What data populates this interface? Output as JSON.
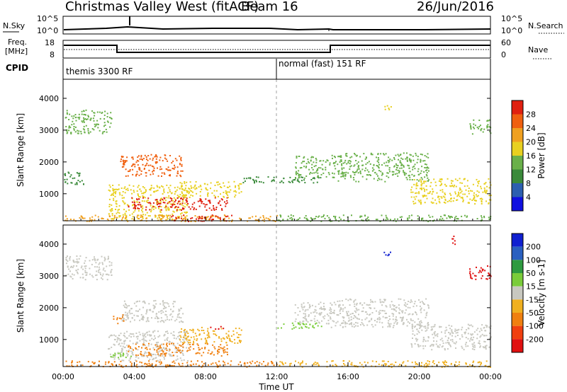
{
  "header": {
    "station": "Christmas Valley West (fitACF)",
    "beam": "Beam 16",
    "date": "26/Jun/2016"
  },
  "strip_labels": {
    "nsky": "N.Sky",
    "nsearch": "N.Search",
    "freq": "Freq.",
    "freq_unit": "[MHz]",
    "nave": "Nave",
    "cpid": "CPID",
    "nsky_top": "10^5",
    "nsky_bot": "10^0",
    "freq_top": "18",
    "freq_bot": "8",
    "nave_top": "60",
    "nave_bot": "0"
  },
  "cpid_segments": [
    {
      "label": "themis 3300 RF",
      "start_hour": 0,
      "end_hour": 12
    },
    {
      "label": "normal (fast) 151 RF",
      "start_hour": 12,
      "end_hour": 24
    }
  ],
  "colors": {
    "power_scale": [
      "#1010e0",
      "#2c5fb0",
      "#3a8a3a",
      "#6ab04a",
      "#e8d020",
      "#f0a020",
      "#f06010",
      "#e02010"
    ],
    "velocity_scale": [
      "#1020d0",
      "#2a60c0",
      "#2e9a40",
      "#7acc3a",
      "#c8c8c0",
      "#f0b020",
      "#f08010",
      "#f04010",
      "#e01010"
    ],
    "ground_gray": "#c0c0b8"
  },
  "chart_data": [
    {
      "type": "heatmap",
      "name": "Power",
      "ylabel": "Slant Range [km]",
      "xlabel": "Time UT",
      "x_ticks": [
        "00:00",
        "04:00",
        "08:00",
        "12:00",
        "16:00",
        "20:00",
        "00:00"
      ],
      "xlim_hours": [
        0,
        24
      ],
      "ylim_km": [
        150,
        4600
      ],
      "y_ticks": [
        1000,
        2000,
        3000,
        4000
      ],
      "colorbar_label": "Power [dB]",
      "colorbar_ticks": [
        "4",
        "8",
        "12",
        "16",
        "20",
        "24",
        "28"
      ],
      "colorbar_range": [
        0,
        32
      ],
      "regions": [
        {
          "t0": 0.1,
          "t1": 2.7,
          "r0": 2900,
          "r1": 3650,
          "level": 12
        },
        {
          "t0": 3.2,
          "t1": 6.7,
          "r0": 1550,
          "r1": 2250,
          "level": 24
        },
        {
          "t0": 0.0,
          "t1": 1.2,
          "r0": 1300,
          "r1": 1700,
          "level": 10
        },
        {
          "t0": 2.5,
          "t1": 7.0,
          "r0": 200,
          "r1": 1300,
          "level": 16
        },
        {
          "t0": 3.6,
          "t1": 9.2,
          "r0": 500,
          "r1": 900,
          "level": 28
        },
        {
          "t0": 6.5,
          "t1": 10.0,
          "r0": 900,
          "r1": 1400,
          "level": 16
        },
        {
          "t0": 0.0,
          "t1": 12.0,
          "r0": 150,
          "r1": 350,
          "level": 20
        },
        {
          "t0": 6.0,
          "t1": 9.5,
          "r0": 150,
          "r1": 350,
          "level": 28
        },
        {
          "t0": 10.0,
          "t1": 12.0,
          "r0": 1350,
          "r1": 1550,
          "level": 8
        },
        {
          "t0": 12.0,
          "t1": 14.5,
          "r0": 1350,
          "r1": 1550,
          "level": 10
        },
        {
          "t0": 13.0,
          "t1": 15.0,
          "r0": 1500,
          "r1": 2200,
          "level": 12
        },
        {
          "t0": 15.0,
          "t1": 20.5,
          "r0": 1400,
          "r1": 2300,
          "level": 12
        },
        {
          "t0": 19.5,
          "t1": 24.0,
          "r0": 700,
          "r1": 1500,
          "level": 16
        },
        {
          "t0": 12.0,
          "t1": 24.0,
          "r0": 150,
          "r1": 350,
          "level": 12
        },
        {
          "t0": 18.0,
          "t1": 18.4,
          "r0": 3650,
          "r1": 3800,
          "level": 16
        },
        {
          "t0": 22.8,
          "t1": 24.0,
          "r0": 2900,
          "r1": 3350,
          "level": 12
        }
      ]
    },
    {
      "type": "heatmap",
      "name": "Velocity",
      "ylabel": "Slant Range [km]",
      "xlabel": "Time UT",
      "x_ticks": [
        "00:00",
        "04:00",
        "08:00",
        "12:00",
        "16:00",
        "20:00",
        "00:00"
      ],
      "xlim_hours": [
        0,
        24
      ],
      "ylim_km": [
        150,
        4600
      ],
      "y_ticks": [
        1000,
        2000,
        3000,
        4000
      ],
      "colorbar_label": "Velocity [m s-1]",
      "colorbar_ticks": [
        "200",
        "100",
        "50",
        "15",
        "-15",
        "-50",
        "-100",
        "-200"
      ],
      "colorbar_range": [
        -250,
        250
      ],
      "regions": [
        {
          "t0": 0.1,
          "t1": 2.7,
          "r0": 2900,
          "r1": 3650,
          "level": 0
        },
        {
          "t0": 3.2,
          "t1": 6.7,
          "r0": 1550,
          "r1": 2250,
          "level": 0
        },
        {
          "t0": 2.8,
          "t1": 3.4,
          "r0": 1500,
          "r1": 1800,
          "level": -60
        },
        {
          "t0": 2.5,
          "t1": 7.0,
          "r0": 350,
          "r1": 1300,
          "level": 0
        },
        {
          "t0": 3.6,
          "t1": 9.2,
          "r0": 500,
          "r1": 900,
          "level": -60
        },
        {
          "t0": 2.6,
          "t1": 3.8,
          "r0": 420,
          "r1": 620,
          "level": 30
        },
        {
          "t0": 8.0,
          "t1": 9.0,
          "r0": 1350,
          "r1": 1450,
          "level": -200
        },
        {
          "t0": 6.5,
          "t1": 10.0,
          "r0": 900,
          "r1": 1400,
          "level": -30
        },
        {
          "t0": 0.0,
          "t1": 12.0,
          "r0": 150,
          "r1": 350,
          "level": -50
        },
        {
          "t0": 12.0,
          "t1": 14.5,
          "r0": 1350,
          "r1": 1550,
          "level": 30
        },
        {
          "t0": 13.0,
          "t1": 15.0,
          "r0": 1500,
          "r1": 2200,
          "level": 0
        },
        {
          "t0": 15.0,
          "t1": 20.5,
          "r0": 1400,
          "r1": 2300,
          "level": 0
        },
        {
          "t0": 19.5,
          "t1": 24.0,
          "r0": 700,
          "r1": 1500,
          "level": 0
        },
        {
          "t0": 12.0,
          "t1": 24.0,
          "r0": 150,
          "r1": 350,
          "level": -40
        },
        {
          "t0": 18.0,
          "t1": 18.4,
          "r0": 3650,
          "r1": 3800,
          "level": 200
        },
        {
          "t0": 22.8,
          "t1": 24.0,
          "r0": 2900,
          "r1": 3350,
          "level": -200
        },
        {
          "t0": 21.8,
          "t1": 22.0,
          "r0": 4000,
          "r1": 4350,
          "level": -200
        }
      ]
    }
  ]
}
